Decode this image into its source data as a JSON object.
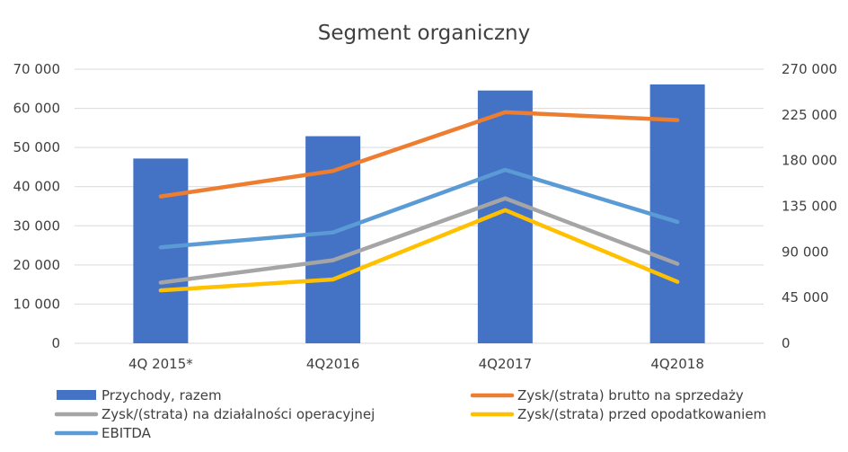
{
  "chart_data": {
    "type": "bar",
    "title": "Segment organiczny",
    "categories": [
      "4Q 2015*",
      "4Q2016",
      "4Q2017",
      "4Q2018"
    ],
    "y_left": {
      "min": 0,
      "max": 70000,
      "ticks": [
        "0",
        "10 000",
        "20 000",
        "30 000",
        "40 000",
        "50 000",
        "60 000",
        "70 000"
      ]
    },
    "y_right": {
      "min": 0,
      "max": 270000,
      "ticks": [
        "0",
        "45 000",
        "90 000",
        "135 000",
        "180 000",
        "225 000",
        "270 000"
      ]
    },
    "grid": true,
    "legend_position": "bottom",
    "series": [
      {
        "name": "Przychody, razem",
        "type": "bar",
        "axis": "right",
        "color": "#4472C4",
        "values": [
          182000,
          204000,
          249000,
          255000
        ]
      },
      {
        "name": "Zysk/(strata) brutto na sprzedaży",
        "type": "line",
        "axis": "left",
        "color": "#ED7D31",
        "values": [
          37500,
          44000,
          59000,
          57000
        ]
      },
      {
        "name": "Zysk/(strata) na działalności operacyjnej",
        "type": "line",
        "axis": "left",
        "color": "#A5A5A5",
        "values": [
          15500,
          21200,
          37000,
          20300
        ]
      },
      {
        "name": "Zysk/(strata) przed opodatkowaniem",
        "type": "line",
        "axis": "left",
        "color": "#FFC000",
        "values": [
          13500,
          16300,
          34000,
          15700
        ]
      },
      {
        "name": "EBITDA",
        "type": "line",
        "axis": "left",
        "color": "#5B9BD5",
        "values": [
          24500,
          28300,
          44300,
          31000
        ]
      }
    ]
  }
}
